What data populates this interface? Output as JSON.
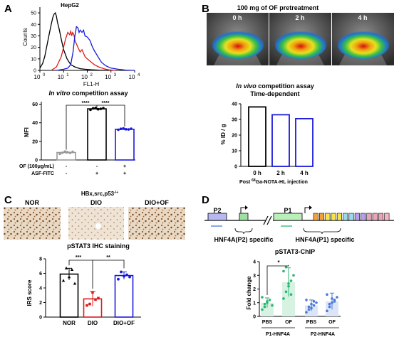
{
  "panels": {
    "A": {
      "label": "A",
      "flow": {
        "title": "HepG2",
        "ylabel": "Counts",
        "xlabel": "FL1-H",
        "xticks": [
          "10",
          "10",
          "10",
          "10",
          "10"
        ],
        "xtick_exp": [
          "0",
          "1",
          "2",
          "3",
          "4"
        ],
        "ytick_vals": [
          "0",
          "10",
          "20",
          "30",
          "40",
          "50"
        ]
      },
      "bar": {
        "title_italic": "In vitro",
        "title_rest": " competition assay",
        "ylabel": "MFI",
        "yticks": [
          "0",
          "20",
          "40",
          "60"
        ],
        "sig": [
          "****",
          "****"
        ],
        "row1_label": "OF (100μg/mL)",
        "row2_label": "ASF-FITC",
        "row1_marks": [
          "-",
          "-",
          "+"
        ],
        "row2_marks": [
          "-",
          "+",
          "+"
        ]
      }
    },
    "B": {
      "label": "B",
      "title": "100 mg of OF pretreatment",
      "image_labels": [
        "0 h",
        "2 h",
        "4 h"
      ],
      "chart_title_italic": "In vivo",
      "chart_title_rest": " competition assay",
      "chart_subtitle": "Time-dependent",
      "ylabel": "% ID / g",
      "yticks": [
        "0",
        "10",
        "20",
        "30",
        "40"
      ],
      "xlabel_pre": "Post ",
      "xlabel_sup": "68",
      "xlabel_post": "Ga-NOTA-HL injection"
    },
    "C": {
      "label": "C",
      "genotype": "HBx,src,p53",
      "genotype_sup": "-/+",
      "image_labels": [
        "NOR",
        "DIO",
        "DIO+OF"
      ],
      "chart_title": "pSTAT3 IHC staining",
      "ylabel": "IRS score",
      "yticks": [
        "0",
        "2",
        "4",
        "6",
        "8"
      ],
      "sig": [
        "***",
        "**"
      ]
    },
    "D": {
      "label": "D",
      "gene_labels": [
        "P2",
        "P1"
      ],
      "specific_labels": [
        "HNF4A(P2) specific",
        "HNF4A(P1) specific"
      ],
      "chart_title": "pSTAT3-ChIP",
      "ylabel": "Fold change",
      "yticks": [
        "0",
        "1",
        "2",
        "3",
        "4"
      ],
      "sig": [
        "*"
      ],
      "group_labels": [
        "P1-HNF4A",
        "P2-HNF4A"
      ]
    }
  },
  "chart_data": [
    {
      "type": "line",
      "panel": "A",
      "xscale": "log",
      "xlim": [
        1,
        10000
      ],
      "ylim": [
        0,
        55
      ],
      "title": "HepG2",
      "xlabel": "FL1-H",
      "ylabel": "Counts",
      "series": [
        {
          "color": "#000000",
          "x": [
            1,
            1.3,
            1.6,
            2,
            2.5,
            3,
            3.5,
            4,
            4.5,
            5,
            5.5,
            6.5,
            8,
            10,
            14,
            20,
            30,
            50,
            80,
            150,
            300,
            800
          ],
          "y": [
            2,
            6,
            12,
            22,
            32,
            40,
            46,
            49,
            50,
            47,
            42,
            36,
            27,
            18,
            10,
            5,
            3,
            1.5,
            1,
            0.5,
            0.2,
            0
          ]
        },
        {
          "color": "#dd1b1b",
          "x": [
            3,
            5,
            8,
            12,
            15,
            18,
            20,
            22,
            24,
            26,
            28,
            30,
            35,
            40,
            50,
            60,
            80,
            100,
            150,
            200,
            300,
            500,
            800,
            1500
          ],
          "y": [
            0,
            3,
            12,
            27,
            33,
            31,
            34,
            30,
            33,
            32,
            30,
            26,
            23,
            20,
            16,
            18,
            12,
            10,
            7,
            5,
            3,
            1.5,
            0.5,
            0
          ]
        },
        {
          "color": "#1a1adb",
          "x": [
            5,
            10,
            15,
            20,
            25,
            30,
            35,
            40,
            45,
            50,
            60,
            70,
            80,
            100,
            130,
            160,
            200,
            300,
            400,
            600,
            1000,
            2000,
            4000,
            10000
          ],
          "y": [
            0,
            1,
            2,
            5,
            16,
            30,
            38,
            37,
            33,
            35,
            33,
            35,
            30,
            29,
            26,
            21,
            17,
            11,
            7,
            4,
            2,
            1,
            0.3,
            0
          ]
        }
      ]
    },
    {
      "type": "bar",
      "panel": "A",
      "ylim": [
        0,
        65
      ],
      "ylabel": "MFI",
      "values": [
        8,
        55,
        33
      ],
      "errors": [
        1.5,
        1.2,
        1.0
      ],
      "colors": [
        "#9a9a9a",
        "#000000",
        "#1a1adb"
      ],
      "points": [
        [
          6.5,
          7.8,
          9,
          8.4,
          7.6,
          8.8
        ],
        [
          54,
          55.5,
          56,
          54.5,
          55,
          55.8
        ],
        [
          32.5,
          33.5,
          34,
          33,
          32.8,
          33.6
        ]
      ]
    },
    {
      "type": "bar",
      "panel": "B",
      "categories": [
        "0 h",
        "2 h",
        "4 h"
      ],
      "values": [
        38,
        33,
        30.5
      ],
      "colors": [
        "#000000",
        "#1a1adb",
        "#1a1adb"
      ],
      "ylim": [
        0,
        40
      ],
      "ylabel": "% ID / g"
    },
    {
      "type": "bar",
      "panel": "C",
      "categories": [
        "NOR",
        "DIO",
        "DIO+OF"
      ],
      "values": [
        5.9,
        2.5,
        5.7
      ],
      "errors": [
        0.8,
        1.0,
        0.5
      ],
      "colors": [
        "#000000",
        "#dd1b1b",
        "#1a1adb"
      ],
      "points": [
        [
          5.0,
          6.7,
          5.5,
          6.5,
          4.6
        ],
        [
          1.6,
          1.8,
          3.4,
          2.4,
          2.6
        ],
        [
          5.2,
          6.2,
          5.6,
          5.8,
          5.5
        ]
      ],
      "ylim": [
        0,
        8
      ],
      "ylabel": "IRS score"
    },
    {
      "type": "bar",
      "panel": "D",
      "categories": [
        "PBS",
        "OF",
        "PBS",
        "OF"
      ],
      "groups": [
        "P1-HNF4A",
        "P1-HNF4A",
        "P2-HNF4A",
        "P2-HNF4A"
      ],
      "values": [
        1.0,
        2.5,
        0.8,
        1.1
      ],
      "errors": [
        0.35,
        1.05,
        0.4,
        0.6
      ],
      "colors": [
        "#2bb673",
        "#2bb673",
        "#4a79d8",
        "#4a79d8"
      ],
      "points": [
        [
          0.5,
          0.7,
          1.0,
          1.2,
          0.8,
          1.4,
          0.9,
          1.1
        ],
        [
          1.3,
          1.8,
          2.2,
          2.6,
          3.0,
          3.3,
          3.6,
          2.4,
          1.6
        ],
        [
          0.3,
          0.5,
          0.6,
          0.8,
          1.0,
          1.2,
          0.7,
          0.9,
          1.1
        ],
        [
          0.4,
          0.7,
          1.0,
          1.2,
          1.4,
          1.6,
          0.9,
          1.3,
          1.1
        ]
      ],
      "ylim": [
        0,
        4
      ],
      "ylabel": "Fold change"
    }
  ]
}
